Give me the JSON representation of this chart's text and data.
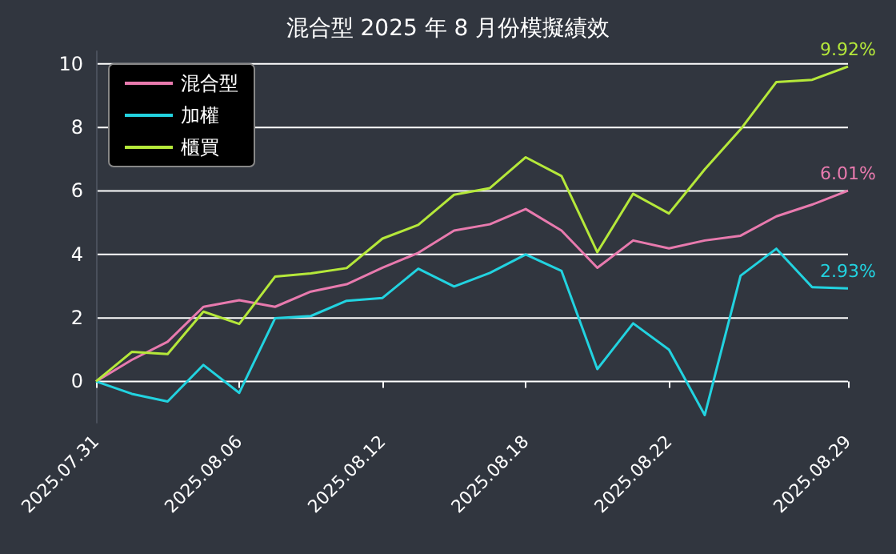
{
  "chart_data": {
    "type": "line",
    "title": "混合型 2025 年 8 月份模擬績效",
    "categories": [
      "2025.07.31",
      null,
      null,
      null,
      "2025.08.06",
      null,
      null,
      null,
      "2025.08.12",
      null,
      null,
      null,
      "2025.08.18",
      null,
      null,
      null,
      "2025.08.22",
      null,
      null,
      null,
      null,
      "2025.08.29"
    ],
    "series": [
      {
        "name": "混合型",
        "color": "#e87aae",
        "values": [
          0,
          0.68,
          1.25,
          2.35,
          2.56,
          2.35,
          2.83,
          3.06,
          3.58,
          4.05,
          4.75,
          4.95,
          5.43,
          4.75,
          3.58,
          4.44,
          4.19,
          4.44,
          4.59,
          5.2,
          5.57,
          6.01
        ],
        "value_labels": [
          null,
          null,
          null,
          null,
          null,
          null,
          null,
          null,
          null,
          null,
          null,
          null,
          null,
          null,
          null,
          null,
          null,
          null,
          null,
          null,
          null,
          "6.01%"
        ]
      },
      {
        "name": "加權",
        "color": "#22d3e0",
        "values": [
          0,
          -0.39,
          -0.63,
          0.52,
          -0.36,
          1.99,
          2.06,
          2.54,
          2.63,
          3.55,
          2.99,
          3.42,
          4.0,
          3.48,
          0.39,
          1.83,
          1.0,
          -1.06,
          3.33,
          4.18,
          2.97,
          2.93
        ],
        "value_labels": [
          null,
          null,
          null,
          null,
          null,
          null,
          null,
          null,
          null,
          null,
          null,
          null,
          null,
          null,
          null,
          null,
          null,
          null,
          null,
          null,
          null,
          "2.93%"
        ]
      },
      {
        "name": "櫃買",
        "color": "#b5e83a",
        "values": [
          0,
          0.93,
          0.86,
          2.2,
          1.81,
          3.3,
          3.4,
          3.57,
          4.5,
          4.93,
          5.88,
          6.09,
          7.06,
          6.47,
          4.07,
          5.91,
          5.29,
          6.68,
          7.94,
          9.43,
          9.5,
          9.92
        ],
        "value_labels": [
          null,
          null,
          null,
          null,
          null,
          null,
          null,
          null,
          null,
          null,
          null,
          null,
          null,
          null,
          null,
          null,
          null,
          null,
          null,
          null,
          null,
          "9.92%"
        ]
      }
    ],
    "ylim": [
      -1.3,
      10.4
    ],
    "yticks": [
      0,
      2,
      4,
      6,
      8,
      10
    ],
    "grid": "y",
    "legend": "top left",
    "marker": "none"
  }
}
